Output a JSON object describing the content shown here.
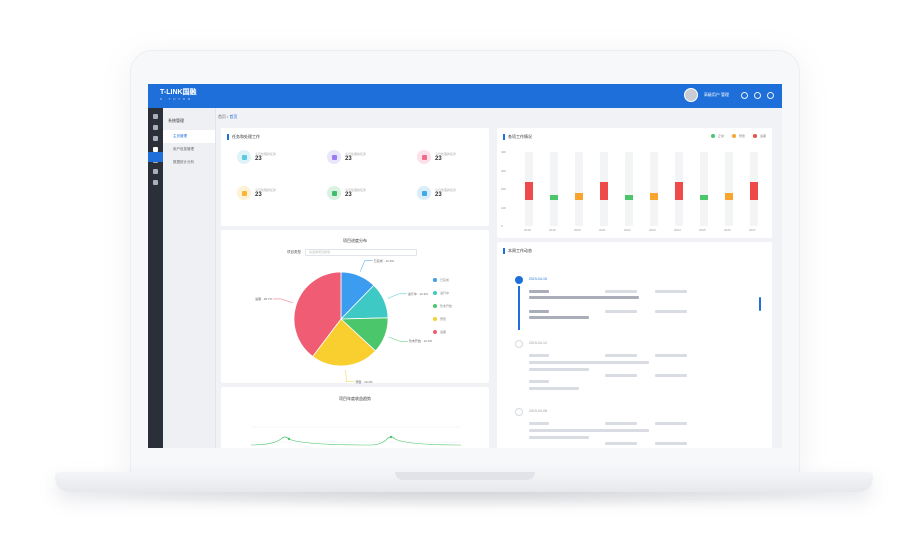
{
  "app": {
    "logo_text": "T-LINK国融",
    "logo_sub": "S · T U T O R",
    "user_name": "高级用户 管理"
  },
  "sidebar": {
    "section_title": "系统管理",
    "items": [
      {
        "label": "主页管理"
      },
      {
        "label": "用户信息管理"
      },
      {
        "label": "数据统计分析"
      }
    ]
  },
  "breadcrumb": {
    "home": "首页",
    "sep": "/",
    "current": "首页"
  },
  "stats_panel": {
    "title": "任务和处理工作",
    "items": [
      {
        "label": "今日处理的任务",
        "value": "23",
        "color": "#5ec9e2",
        "icon": "clipboard-icon"
      },
      {
        "label": "今日处理的任务",
        "value": "23",
        "color": "#9b7cf0",
        "icon": "bell-icon"
      },
      {
        "label": "今日处理的任务",
        "value": "23",
        "color": "#f06d8a",
        "icon": "calendar-icon"
      },
      {
        "label": "今日处理的任务",
        "value": "23",
        "color": "#f7b733",
        "icon": "home-icon"
      },
      {
        "label": "今日处理的任务",
        "value": "23",
        "color": "#3fbf6b",
        "icon": "grid-icon"
      },
      {
        "label": "今日处理的任务",
        "value": "23",
        "color": "#42a9e8",
        "icon": "message-icon"
      }
    ]
  },
  "pie_panel": {
    "title": "项目进度分布",
    "filter_label": "项目类型",
    "filter_value": "请选择项目类型"
  },
  "bar_panel": {
    "title": "各项工作情况",
    "legend": [
      "正常",
      "预警",
      "逾期"
    ]
  },
  "timeline_panel": {
    "title": "本周工作动态",
    "entries": [
      {
        "date": "2019-04-15",
        "active": true
      },
      {
        "date": "2019-04-12",
        "active": false
      },
      {
        "date": "2019-04-08",
        "active": false
      }
    ]
  },
  "line_panel": {
    "title": "项目年度收益趋势"
  },
  "chart_data": [
    {
      "type": "pie",
      "categories": [
        "已完成",
        "进行中",
        "暂未开始",
        "预警",
        "逾期"
      ],
      "values": [
        12.3,
        12.3,
        12.3,
        23.4,
        39.7
      ],
      "labels": [
        "已完成 · 12.3%",
        "进行中 · 12.3%",
        "暂未开始 · 12.3%",
        "预警 · 23.4%",
        "逾期 · 39.7%"
      ],
      "colors": [
        "#3b9cf0",
        "#3fc9c4",
        "#4cc66a",
        "#f8cf2f",
        "#ef5c73"
      ]
    },
    {
      "type": "bar",
      "categories": [
        "2018",
        "2019",
        "2020",
        "2021",
        "2022",
        "2023",
        "2024",
        "2025",
        "2026",
        "2027"
      ],
      "series": [
        {
          "name": "正常",
          "values": [
            0,
            30,
            0,
            0,
            30,
            0,
            0,
            30,
            0,
            0
          ]
        },
        {
          "name": "预警",
          "values": [
            0,
            0,
            40,
            0,
            0,
            40,
            0,
            0,
            40,
            0
          ]
        },
        {
          "name": "逾期",
          "values": [
            100,
            0,
            0,
            100,
            0,
            0,
            100,
            0,
            0,
            100
          ]
        }
      ],
      "ylim": [
        0,
        400
      ],
      "yticks": [
        "0",
        "100",
        "200",
        "300",
        "400"
      ]
    }
  ]
}
